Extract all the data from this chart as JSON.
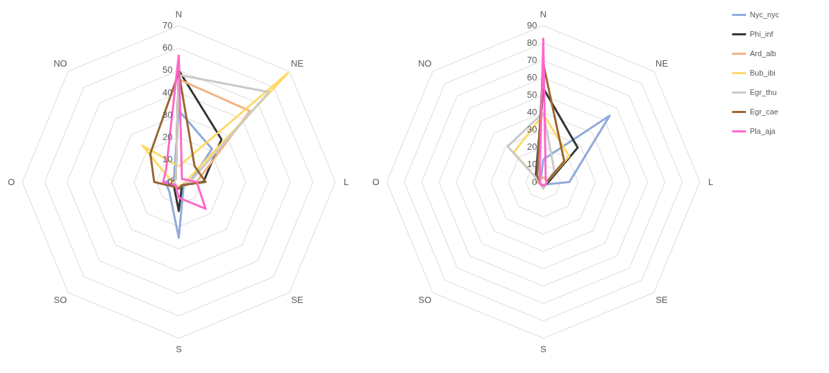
{
  "chart_data": [
    {
      "type": "radar",
      "categories": [
        "N",
        "NE",
        "L",
        "SE",
        "S",
        "SO",
        "O",
        "NO"
      ],
      "ylim": [
        0,
        70
      ],
      "yticks": [
        0,
        10,
        20,
        30,
        40,
        50,
        60,
        70
      ],
      "grid": true,
      "legend": "right",
      "line_style": "solid",
      "marker": "none",
      "series": [
        {
          "name": "Nyc_nyc",
          "color": "#8faadc",
          "values": [
            32,
            21,
            5,
            3,
            25,
            6,
            6,
            3
          ]
        },
        {
          "name": "Phi_inf",
          "color": "#333333",
          "values": [
            50,
            27,
            11,
            2,
            13,
            3,
            3,
            2
          ]
        },
        {
          "name": "Ard_alb",
          "color": "#f4b183",
          "values": [
            46,
            45,
            8,
            2,
            2,
            2,
            2,
            2
          ]
        },
        {
          "name": "Bub_ibi",
          "color": "#ffd966",
          "values": [
            7,
            69,
            3,
            2,
            2,
            2,
            3,
            23
          ]
        },
        {
          "name": "Egr_thu",
          "color": "#c9c9c9",
          "values": [
            48,
            57,
            5,
            2,
            3,
            2,
            2,
            2
          ]
        },
        {
          "name": "Egr_cae",
          "color": "#996633",
          "values": [
            49,
            10,
            12,
            2,
            3,
            3,
            11,
            18
          ]
        },
        {
          "name": "Pla_aja",
          "color": "#ff66cc",
          "values": [
            57,
            2,
            8,
            17,
            7,
            2,
            7,
            8
          ]
        }
      ]
    },
    {
      "type": "radar",
      "categories": [
        "N",
        "NE",
        "L",
        "SE",
        "S",
        "SO",
        "O",
        "NO"
      ],
      "ylim": [
        0,
        90
      ],
      "yticks": [
        0,
        10,
        20,
        30,
        40,
        50,
        60,
        70,
        80,
        90
      ],
      "grid": true,
      "legend": "right",
      "line_style": "solid",
      "marker": "none",
      "series": [
        {
          "name": "Nyc_nyc",
          "color": "#8faadc",
          "values": [
            13,
            54,
            15,
            2,
            2,
            2,
            2,
            2
          ]
        },
        {
          "name": "Phi_inf",
          "color": "#333333",
          "values": [
            54,
            28,
            3,
            2,
            3,
            2,
            2,
            6
          ]
        },
        {
          "name": "Ard_alb",
          "color": "#f4b183",
          "values": [
            3,
            2,
            2,
            2,
            2,
            2,
            4,
            2
          ]
        },
        {
          "name": "Bub_ibi",
          "color": "#ffd966",
          "values": [
            39,
            21,
            2,
            2,
            2,
            2,
            2,
            24
          ]
        },
        {
          "name": "Egr_thu",
          "color": "#c9c9c9",
          "values": [
            40,
            9,
            2,
            2,
            4,
            2,
            2,
            29
          ]
        },
        {
          "name": "Egr_cae",
          "color": "#996633",
          "values": [
            68,
            17,
            2,
            2,
            2,
            2,
            2,
            5
          ]
        },
        {
          "name": "Pla_aja",
          "color": "#ff66cc",
          "values": [
            83,
            2,
            2,
            2,
            2,
            2,
            2,
            3
          ]
        }
      ]
    }
  ]
}
